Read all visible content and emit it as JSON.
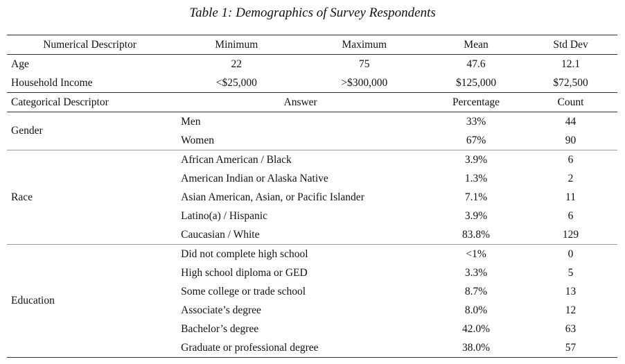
{
  "caption": "Table 1:  Demographics of Survey Respondents",
  "numerical": {
    "headers": [
      "Numerical Descriptor",
      "Minimum",
      "Maximum",
      "Mean",
      "Std Dev"
    ],
    "rows": [
      [
        "Age",
        "22",
        "75",
        "47.6",
        "12.1"
      ],
      [
        "Household Income",
        "<$25,000",
        ">$300,000",
        "$125,000",
        "$72,500"
      ]
    ]
  },
  "categorical": {
    "headers": [
      "Categorical Descriptor",
      "Answer",
      "Percentage",
      "Count"
    ],
    "groups": [
      {
        "label": "Gender",
        "rows": [
          [
            "Men",
            "33%",
            "44"
          ],
          [
            "Women",
            "67%",
            "90"
          ]
        ]
      },
      {
        "label": "Race",
        "rows": [
          [
            "African American / Black",
            "3.9%",
            "6"
          ],
          [
            "American Indian or Alaska Native",
            "1.3%",
            "2"
          ],
          [
            "Asian American, Asian, or Pacific Islander",
            "7.1%",
            "11"
          ],
          [
            "Latino(a) / Hispanic",
            "3.9%",
            "6"
          ],
          [
            "Caucasian / White",
            "83.8%",
            "129"
          ]
        ]
      },
      {
        "label": "Education",
        "rows": [
          [
            "Did not complete high school",
            "<1%",
            "0"
          ],
          [
            "High school diploma or GED",
            "3.3%",
            "5"
          ],
          [
            "Some college or trade school",
            "8.7%",
            "13"
          ],
          [
            "Associate’s degree",
            "8.0%",
            "12"
          ],
          [
            "Bachelor’s degree",
            "42.0%",
            "63"
          ],
          [
            "Graduate or professional degree",
            "38.0%",
            "57"
          ]
        ]
      }
    ]
  }
}
